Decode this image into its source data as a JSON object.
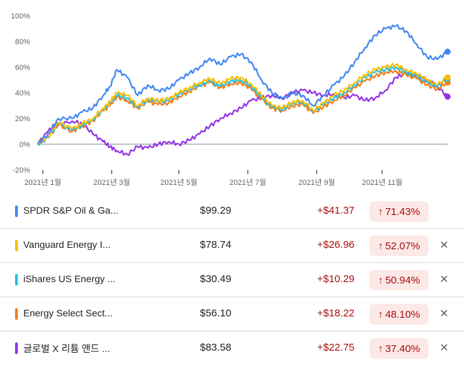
{
  "chart_data": {
    "type": "line",
    "y_ticks": [
      "100%",
      "80%",
      "60%",
      "40%",
      "20%",
      "0%",
      "-20%"
    ],
    "x_ticks": [
      "2021년 1월",
      "2021년 3월",
      "2021년 5월",
      "2021년 7월",
      "2021년 9월",
      "2021년 11월"
    ],
    "ylim": [
      -20,
      100
    ],
    "x_range_months": [
      0,
      11.9
    ],
    "x_tick_months": [
      0.15,
      2.15,
      4.1,
      6.1,
      8.1,
      10.0
    ],
    "series": [
      {
        "color": "#4285f4",
        "x": [
          0,
          0.3,
          0.6,
          1.0,
          1.3,
          1.6,
          1.9,
          2.1,
          2.3,
          2.6,
          2.9,
          3.2,
          3.5,
          3.8,
          4.1,
          4.4,
          4.7,
          5.0,
          5.3,
          5.6,
          5.9,
          6.2,
          6.5,
          6.8,
          7.1,
          7.4,
          7.7,
          8.0,
          8.3,
          8.6,
          8.9,
          9.2,
          9.5,
          9.8,
          10.1,
          10.4,
          10.7,
          11.0,
          11.3,
          11.6,
          11.9
        ],
        "y": [
          0,
          8,
          20,
          20,
          25,
          28,
          38,
          45,
          58,
          52,
          38,
          46,
          42,
          43,
          50,
          55,
          60,
          67,
          62,
          68,
          70,
          64,
          50,
          40,
          35,
          40,
          38,
          30,
          38,
          46,
          53,
          64,
          75,
          85,
          90,
          92,
          88,
          78,
          68,
          66,
          72
        ]
      },
      {
        "color": "#fbbc04",
        "x": [
          0,
          0.3,
          0.6,
          1.0,
          1.3,
          1.6,
          1.9,
          2.1,
          2.3,
          2.6,
          2.9,
          3.2,
          3.5,
          3.8,
          4.1,
          4.4,
          4.7,
          5.0,
          5.3,
          5.6,
          5.9,
          6.2,
          6.5,
          6.8,
          7.1,
          7.4,
          7.7,
          8.0,
          8.3,
          8.6,
          8.9,
          9.2,
          9.5,
          9.8,
          10.1,
          10.4,
          10.7,
          11.0,
          11.3,
          11.6,
          11.9
        ],
        "y": [
          0,
          6,
          17,
          12,
          16,
          20,
          28,
          33,
          40,
          38,
          30,
          36,
          34,
          35,
          40,
          44,
          48,
          51,
          47,
          51,
          52,
          47,
          38,
          30,
          28,
          33,
          34,
          26,
          32,
          38,
          42,
          48,
          54,
          58,
          60,
          62,
          58,
          55,
          50,
          46,
          52
        ]
      },
      {
        "color": "#24c1e0",
        "x": [
          0,
          0.3,
          0.6,
          1.0,
          1.3,
          1.6,
          1.9,
          2.1,
          2.3,
          2.6,
          2.9,
          3.2,
          3.5,
          3.8,
          4.1,
          4.4,
          4.7,
          5.0,
          5.3,
          5.6,
          5.9,
          6.2,
          6.5,
          6.8,
          7.1,
          7.4,
          7.7,
          8.0,
          8.3,
          8.6,
          8.9,
          9.2,
          9.5,
          9.8,
          10.1,
          10.4,
          10.7,
          11.0,
          11.3,
          11.6,
          11.9
        ],
        "y": [
          0,
          5,
          16,
          11,
          15,
          19,
          27,
          32,
          38,
          36,
          29,
          35,
          33,
          34,
          39,
          43,
          46,
          49,
          45,
          49,
          50,
          45,
          36,
          29,
          27,
          32,
          33,
          25,
          31,
          36,
          40,
          46,
          52,
          56,
          58,
          60,
          56,
          53,
          48,
          45,
          51
        ]
      },
      {
        "color": "#fa7b17",
        "x": [
          0,
          0.3,
          0.6,
          1.0,
          1.3,
          1.6,
          1.9,
          2.1,
          2.3,
          2.6,
          2.9,
          3.2,
          3.5,
          3.8,
          4.1,
          4.4,
          4.7,
          5.0,
          5.3,
          5.6,
          5.9,
          6.2,
          6.5,
          6.8,
          7.1,
          7.4,
          7.7,
          8.0,
          8.3,
          8.6,
          8.9,
          9.2,
          9.5,
          9.8,
          10.1,
          10.4,
          10.7,
          11.0,
          11.3,
          11.6,
          11.9
        ],
        "y": [
          0,
          5,
          15,
          10,
          14,
          18,
          26,
          30,
          37,
          34,
          28,
          33,
          31,
          32,
          37,
          41,
          45,
          48,
          44,
          47,
          48,
          43,
          35,
          28,
          26,
          30,
          31,
          24,
          29,
          34,
          38,
          44,
          49,
          53,
          56,
          57,
          54,
          51,
          46,
          43,
          48
        ]
      },
      {
        "color": "#9334e6",
        "x": [
          0,
          0.3,
          0.6,
          1.0,
          1.3,
          1.6,
          1.9,
          2.1,
          2.3,
          2.6,
          2.9,
          3.2,
          3.5,
          3.8,
          4.1,
          4.4,
          4.7,
          5.0,
          5.3,
          5.6,
          5.9,
          6.2,
          6.5,
          6.8,
          7.1,
          7.4,
          7.7,
          8.0,
          8.3,
          8.6,
          8.9,
          9.2,
          9.5,
          9.8,
          10.1,
          10.4,
          10.7,
          11.0,
          11.3,
          11.6,
          11.9
        ],
        "y": [
          0,
          10,
          15,
          18,
          16,
          8,
          2,
          -2,
          -5,
          -8,
          -2,
          -3,
          0,
          2,
          0,
          3,
          8,
          14,
          20,
          24,
          28,
          34,
          36,
          38,
          36,
          40,
          42,
          40,
          38,
          39,
          36,
          38,
          34,
          36,
          42,
          52,
          55,
          53,
          50,
          45,
          37
        ]
      }
    ]
  },
  "rows": [
    {
      "name": "SPDR S&P Oil & Ga...",
      "color": "#4285f4",
      "price": "$99.29",
      "change": "+$41.37",
      "pct": "71.43%",
      "arrow": "↑",
      "close": ""
    },
    {
      "name": "Vanguard Energy I...",
      "color": "#fbbc04",
      "price": "$78.74",
      "change": "+$26.96",
      "pct": "52.07%",
      "arrow": "↑",
      "close": "✕"
    },
    {
      "name": "iShares US Energy ...",
      "color": "#24c1e0",
      "price": "$30.49",
      "change": "+$10.29",
      "pct": "50.94%",
      "arrow": "↑",
      "close": "✕"
    },
    {
      "name": "Energy Select Sect...",
      "color": "#fa7b17",
      "price": "$56.10",
      "change": "+$18.22",
      "pct": "48.10%",
      "arrow": "↑",
      "close": "✕"
    },
    {
      "name": "글로벌 X 리튬 앤드 ...",
      "color": "#9334e6",
      "price": "$83.58",
      "change": "+$22.75",
      "pct": "37.40%",
      "arrow": "↑",
      "close": "✕"
    }
  ]
}
